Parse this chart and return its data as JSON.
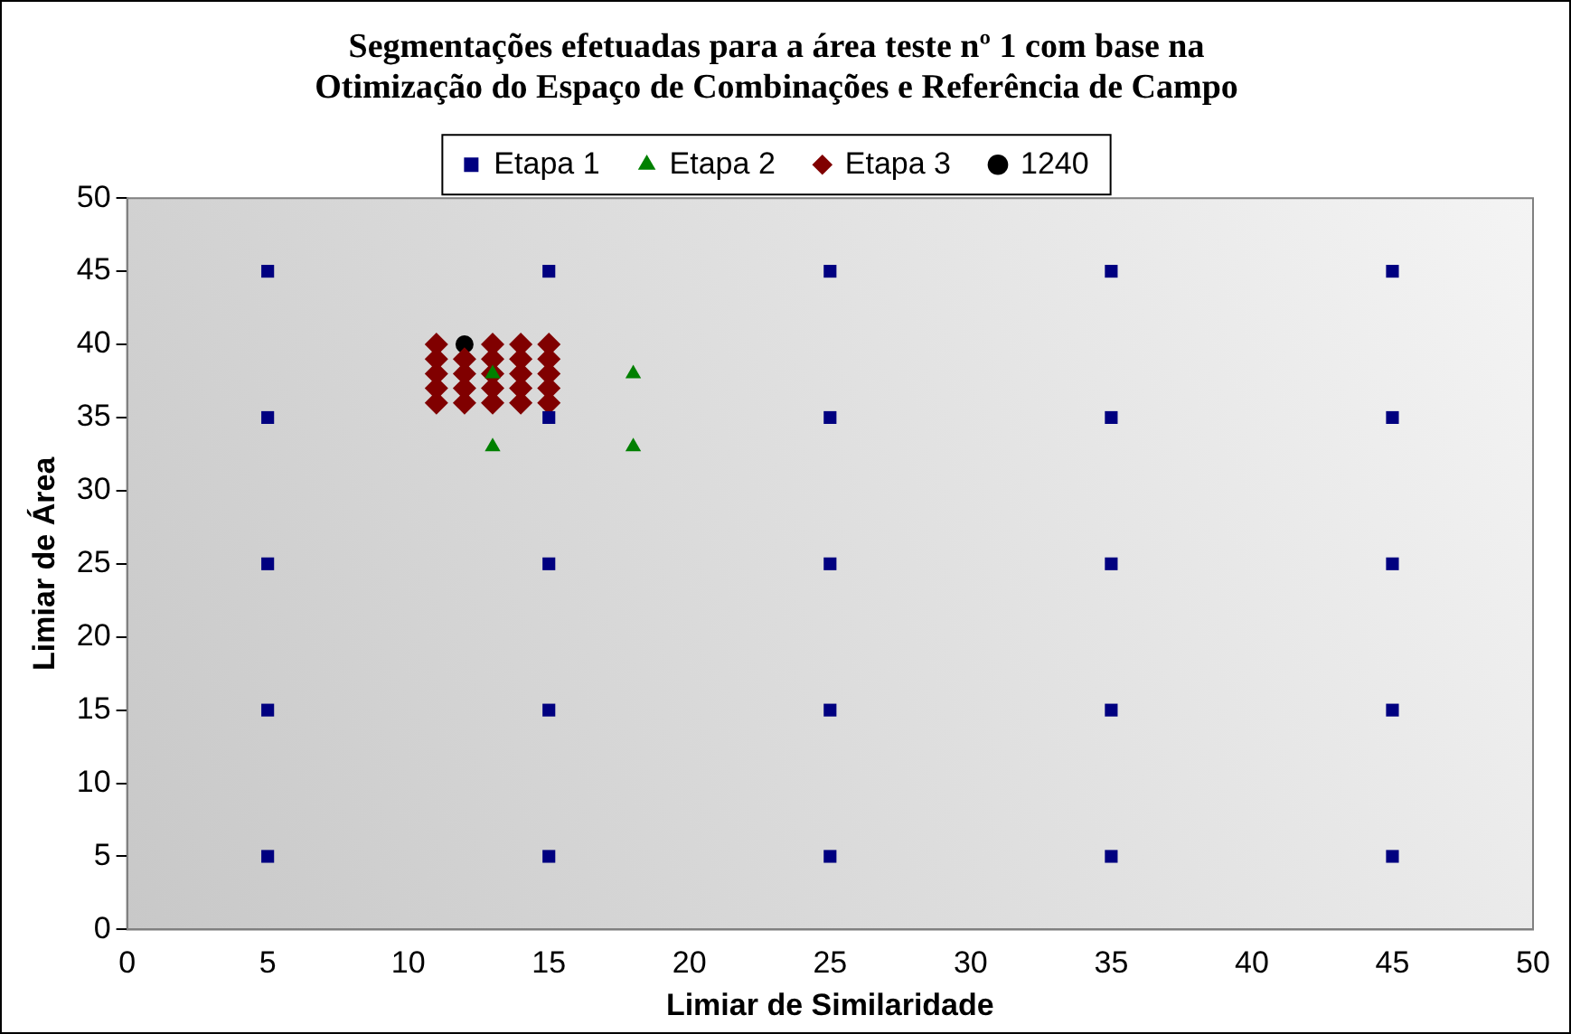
{
  "chart_data": {
    "type": "scatter",
    "title": "Segmentações efetuadas para a área teste nº 1 com base na Otimização do Espaço de Combinações e Referência de Campo",
    "xlabel": "Limiar de Similaridade",
    "ylabel": "Limiar de Área",
    "xlim": [
      0,
      50
    ],
    "xticks": [
      0,
      5,
      10,
      15,
      20,
      25,
      30,
      35,
      40,
      45,
      50
    ],
    "ylim": [
      0,
      50
    ],
    "yticks": [
      0,
      5,
      10,
      15,
      20,
      25,
      30,
      35,
      40,
      45,
      50
    ],
    "grid": false,
    "legend": "top",
    "series": [
      {
        "name": "Etapa 1",
        "color": "#000080",
        "marker": "square",
        "x": [
          5,
          5,
          5,
          5,
          5,
          15,
          15,
          15,
          15,
          15,
          25,
          25,
          25,
          25,
          25,
          35,
          35,
          35,
          35,
          35,
          45,
          45,
          45,
          45,
          45
        ],
        "values": [
          5,
          15,
          25,
          35,
          45,
          5,
          15,
          25,
          35,
          45,
          5,
          15,
          25,
          35,
          45,
          5,
          15,
          25,
          35,
          45,
          5,
          15,
          25,
          35,
          45
        ]
      },
      {
        "name": "Etapa 2",
        "color": "#008000",
        "marker": "triangle",
        "x": [
          13,
          13,
          18,
          18
        ],
        "values": [
          33,
          38,
          38,
          33
        ]
      },
      {
        "name": "Etapa 3",
        "color": "#800000",
        "marker": "diamond",
        "x": [
          11,
          11,
          11,
          11,
          11,
          12,
          12,
          12,
          12,
          13,
          13,
          13,
          13,
          13,
          14,
          14,
          14,
          14,
          14,
          15,
          15,
          15,
          15,
          15
        ],
        "values": [
          40,
          39,
          38,
          37,
          36,
          39,
          38,
          37,
          36,
          40,
          39,
          38,
          37,
          36,
          40,
          39,
          38,
          37,
          36,
          40,
          39,
          38,
          37,
          36
        ]
      },
      {
        "name": "1240",
        "color": "#000000",
        "marker": "circle",
        "x": [
          12
        ],
        "values": [
          40
        ]
      }
    ]
  }
}
